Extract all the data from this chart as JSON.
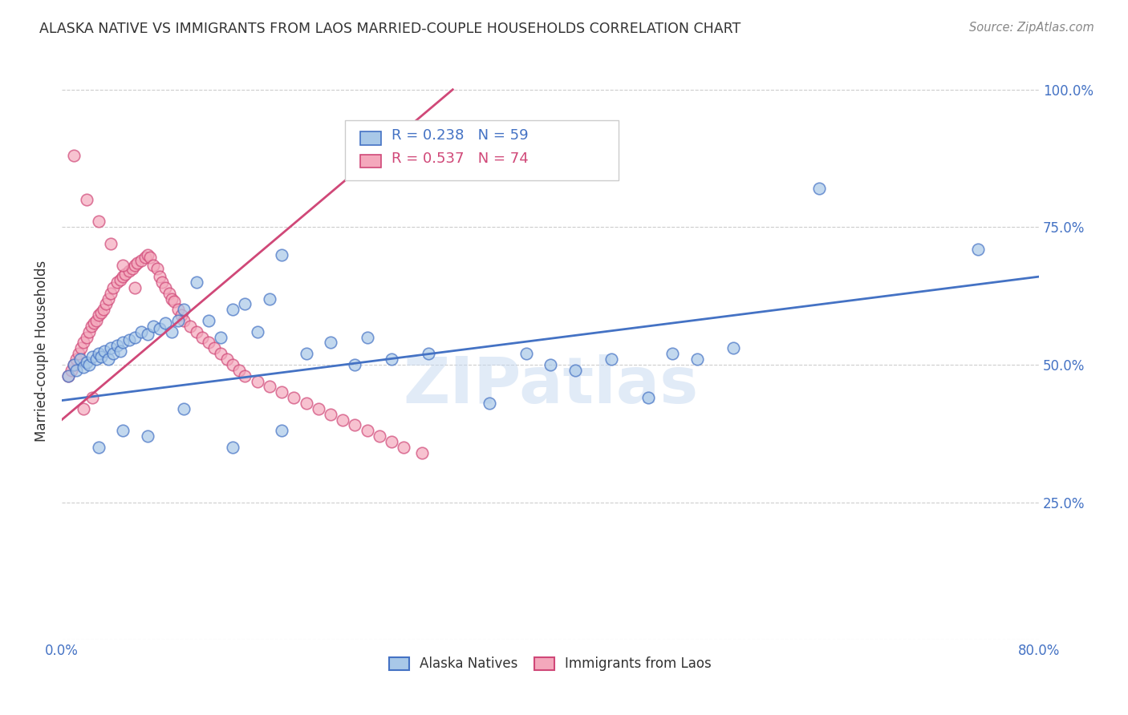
{
  "title": "ALASKA NATIVE VS IMMIGRANTS FROM LAOS MARRIED-COUPLE HOUSEHOLDS CORRELATION CHART",
  "source": "Source: ZipAtlas.com",
  "ylabel": "Married-couple Households",
  "legend_label1": "Alaska Natives",
  "legend_label2": "Immigrants from Laos",
  "R1": 0.238,
  "N1": 59,
  "R2": 0.537,
  "N2": 74,
  "color_blue": "#a8c8e8",
  "color_pink": "#f4a8bc",
  "line_color_blue": "#4472c4",
  "line_color_pink": "#d04878",
  "axis_color": "#4472c4",
  "title_color": "#333333",
  "source_color": "#888888",
  "watermark": "ZIPatlas",
  "xlim": [
    0.0,
    0.8
  ],
  "ylim": [
    0.0,
    1.05
  ],
  "alaska_x": [
    0.005,
    0.01,
    0.012,
    0.015,
    0.018,
    0.02,
    0.022,
    0.025,
    0.028,
    0.03,
    0.032,
    0.035,
    0.038,
    0.04,
    0.042,
    0.045,
    0.048,
    0.05,
    0.055,
    0.06,
    0.065,
    0.07,
    0.075,
    0.08,
    0.085,
    0.09,
    0.095,
    0.1,
    0.11,
    0.12,
    0.13,
    0.14,
    0.15,
    0.16,
    0.17,
    0.18,
    0.2,
    0.22,
    0.24,
    0.25,
    0.27,
    0.3,
    0.35,
    0.38,
    0.4,
    0.42,
    0.45,
    0.48,
    0.5,
    0.52,
    0.55,
    0.03,
    0.05,
    0.07,
    0.1,
    0.14,
    0.18,
    0.62,
    0.75
  ],
  "alaska_y": [
    0.48,
    0.5,
    0.49,
    0.51,
    0.495,
    0.505,
    0.5,
    0.515,
    0.51,
    0.52,
    0.515,
    0.525,
    0.51,
    0.53,
    0.52,
    0.535,
    0.525,
    0.54,
    0.545,
    0.55,
    0.56,
    0.555,
    0.57,
    0.565,
    0.575,
    0.56,
    0.58,
    0.6,
    0.65,
    0.58,
    0.55,
    0.6,
    0.61,
    0.56,
    0.62,
    0.7,
    0.52,
    0.54,
    0.5,
    0.55,
    0.51,
    0.52,
    0.43,
    0.52,
    0.5,
    0.49,
    0.51,
    0.44,
    0.52,
    0.51,
    0.53,
    0.35,
    0.38,
    0.37,
    0.42,
    0.35,
    0.38,
    0.82,
    0.71
  ],
  "laos_x": [
    0.005,
    0.008,
    0.01,
    0.012,
    0.014,
    0.016,
    0.018,
    0.02,
    0.022,
    0.024,
    0.026,
    0.028,
    0.03,
    0.032,
    0.034,
    0.036,
    0.038,
    0.04,
    0.042,
    0.045,
    0.048,
    0.05,
    0.052,
    0.055,
    0.058,
    0.06,
    0.062,
    0.065,
    0.068,
    0.07,
    0.072,
    0.075,
    0.078,
    0.08,
    0.082,
    0.085,
    0.088,
    0.09,
    0.092,
    0.095,
    0.098,
    0.1,
    0.105,
    0.11,
    0.115,
    0.12,
    0.125,
    0.13,
    0.135,
    0.14,
    0.145,
    0.15,
    0.16,
    0.17,
    0.18,
    0.19,
    0.2,
    0.21,
    0.22,
    0.23,
    0.24,
    0.25,
    0.26,
    0.27,
    0.28,
    0.295,
    0.01,
    0.02,
    0.03,
    0.04,
    0.05,
    0.06,
    0.018,
    0.025
  ],
  "laos_y": [
    0.48,
    0.49,
    0.5,
    0.51,
    0.52,
    0.53,
    0.54,
    0.55,
    0.56,
    0.57,
    0.575,
    0.58,
    0.59,
    0.595,
    0.6,
    0.61,
    0.62,
    0.63,
    0.64,
    0.65,
    0.655,
    0.66,
    0.665,
    0.67,
    0.675,
    0.68,
    0.685,
    0.69,
    0.695,
    0.7,
    0.695,
    0.68,
    0.675,
    0.66,
    0.65,
    0.64,
    0.63,
    0.62,
    0.615,
    0.6,
    0.59,
    0.58,
    0.57,
    0.56,
    0.55,
    0.54,
    0.53,
    0.52,
    0.51,
    0.5,
    0.49,
    0.48,
    0.47,
    0.46,
    0.45,
    0.44,
    0.43,
    0.42,
    0.41,
    0.4,
    0.39,
    0.38,
    0.37,
    0.36,
    0.35,
    0.34,
    0.88,
    0.8,
    0.76,
    0.72,
    0.68,
    0.64,
    0.42,
    0.44
  ],
  "blue_line_x": [
    0.0,
    0.8
  ],
  "blue_line_y": [
    0.435,
    0.66
  ],
  "pink_line_x": [
    0.0,
    0.32
  ],
  "pink_line_y": [
    0.4,
    1.0
  ]
}
